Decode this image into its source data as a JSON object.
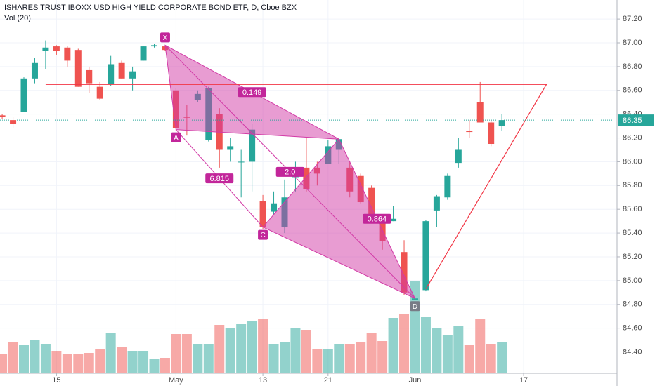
{
  "chart_data": {
    "type": "candlestick",
    "title": "ISHARES TRUST IBOXX USD HIGH YIELD CORPORATE BOND ETF, D, Cboe BZX",
    "subtitle": "Vol (20)",
    "open": [
      86.39,
      86.35,
      86.42,
      86.7,
      86.93,
      86.97,
      86.96,
      86.94,
      86.77,
      86.63,
      86.65,
      86.83,
      86.7,
      86.85,
      86.97,
      86.97,
      86.6,
      86.38,
      86.52,
      86.18,
      86.4,
      86.1,
      86.0,
      86.0,
      85.67,
      85.58,
      85.45,
      85.87,
      85.95,
      85.95,
      85.98,
      86.1,
      85.95,
      85.88,
      85.78,
      85.48,
      85.5,
      85.24,
      84.84,
      84.92,
      85.59,
      85.7,
      85.99,
      86.26,
      86.5,
      86.33,
      86.3
    ],
    "high": [
      86.4,
      86.38,
      86.71,
      86.87,
      87.02,
      86.98,
      86.97,
      86.95,
      86.8,
      86.67,
      86.89,
      86.85,
      86.8,
      86.97,
      86.99,
      86.98,
      86.62,
      86.48,
      86.6,
      86.63,
      86.45,
      86.2,
      86.1,
      86.32,
      85.72,
      85.75,
      85.85,
      86.0,
      86.2,
      86.0,
      86.18,
      86.2,
      86.0,
      85.9,
      85.8,
      85.52,
      85.63,
      85.34,
      85.0,
      85.51,
      85.72,
      85.9,
      86.2,
      86.35,
      86.67,
      86.35,
      86.4
    ],
    "low": [
      86.36,
      86.28,
      86.42,
      86.66,
      86.78,
      86.9,
      86.8,
      86.63,
      86.58,
      86.52,
      86.64,
      86.7,
      86.6,
      86.85,
      86.96,
      86.93,
      86.26,
      86.22,
      86.5,
      86.17,
      85.95,
      86.0,
      85.7,
      85.75,
      85.43,
      85.55,
      85.4,
      85.75,
      85.75,
      85.8,
      85.98,
      85.98,
      85.7,
      85.65,
      85.5,
      85.26,
      85.5,
      84.88,
      84.47,
      84.91,
      85.45,
      85.68,
      85.95,
      86.2,
      86.33,
      86.13,
      86.26
    ],
    "close": [
      86.38,
      86.32,
      86.7,
      86.83,
      86.96,
      86.93,
      86.85,
      86.63,
      86.66,
      86.53,
      86.82,
      86.7,
      86.76,
      86.97,
      86.98,
      86.94,
      86.28,
      86.37,
      86.57,
      86.62,
      86.1,
      86.13,
      86.0,
      86.27,
      85.45,
      85.65,
      85.7,
      85.88,
      85.77,
      85.9,
      86.13,
      86.19,
      85.75,
      85.66,
      85.55,
      85.33,
      85.52,
      84.9,
      84.85,
      85.5,
      85.71,
      85.88,
      86.1,
      86.25,
      86.33,
      86.15,
      86.35
    ],
    "volume": [
      27,
      44,
      40,
      47,
      42,
      32,
      27,
      27,
      29,
      35,
      57,
      37,
      32,
      32,
      20,
      22,
      56,
      56,
      42,
      42,
      69,
      64,
      70,
      74,
      78,
      42,
      44,
      65,
      62,
      35,
      35,
      42,
      42,
      44,
      58,
      46,
      79,
      84,
      132,
      80,
      65,
      55,
      67,
      40,
      77,
      42,
      44
    ],
    "up_color": "#26a69a",
    "down_color": "#ef5350",
    "ylim": [
      84.22,
      87.36
    ],
    "yticks": [
      {
        "value": 84.4,
        "label": "84.40"
      },
      {
        "value": 84.6,
        "label": "84.60"
      },
      {
        "value": 84.8,
        "label": "84.80"
      },
      {
        "value": 85.0,
        "label": "85.00"
      },
      {
        "value": 85.2,
        "label": "85.20"
      },
      {
        "value": 85.4,
        "label": "85.40"
      },
      {
        "value": 85.6,
        "label": "85.60"
      },
      {
        "value": 85.8,
        "label": "85.80"
      },
      {
        "value": 86.0,
        "label": "86.00"
      },
      {
        "value": 86.2,
        "label": "86.20"
      },
      {
        "value": 86.4,
        "label": "86.40"
      },
      {
        "value": 86.6,
        "label": "86.60"
      },
      {
        "value": 86.8,
        "label": "86.80"
      },
      {
        "value": 87.0,
        "label": "87.00"
      },
      {
        "value": 87.2,
        "label": "87.20"
      }
    ],
    "y2lim": [
      0,
      532
    ],
    "xlim": [
      -0.2,
      56.6
    ],
    "xticks": [
      {
        "value": 5,
        "label": "15"
      },
      {
        "value": 16,
        "label": "May"
      },
      {
        "value": 24,
        "label": "13"
      },
      {
        "value": 30,
        "label": "21"
      },
      {
        "value": 38,
        "label": "Jun"
      },
      {
        "value": 48,
        "label": "17"
      }
    ],
    "grid": true,
    "pattern": {
      "color": "#d23aa6",
      "points": [
        {
          "label": "X",
          "index": 15,
          "price": 86.98
        },
        {
          "label": "A",
          "index": 16,
          "price": 86.27
        },
        {
          "label": null,
          "index": 31,
          "price": 86.19
        },
        {
          "label": "C",
          "index": 24,
          "price": 85.45
        },
        {
          "label": "D",
          "index": 38,
          "price": 84.85
        }
      ],
      "ratios": [
        "0.149",
        "6.815",
        "2.0",
        "0.864"
      ]
    },
    "projection": {
      "color": "#f23645",
      "points": [
        {
          "index": 4,
          "price": 86.65
        },
        {
          "index": 50.1,
          "price": 86.65
        },
        {
          "index": 39,
          "price": 84.93
        }
      ]
    }
  }
}
